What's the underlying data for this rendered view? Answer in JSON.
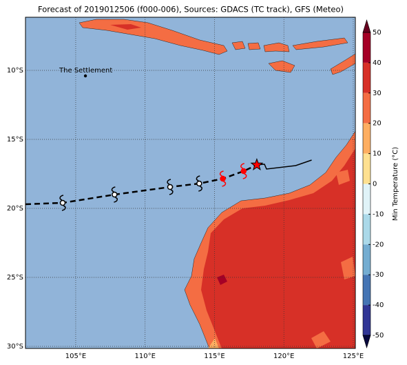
{
  "title": "Forecast of 2019012506 (f000-006), Sources: GDACS (TC track), GFS (Meteo)",
  "map": {
    "lon_range": [
      101.38,
      125.15
    ],
    "lat_range": [
      -6.15,
      -30.15
    ],
    "ocean_color": "#91b4d9",
    "lon_ticks": [
      {
        "value": 105,
        "label": "105°E"
      },
      {
        "value": 110,
        "label": "110°E"
      },
      {
        "value": 115,
        "label": "115°E"
      },
      {
        "value": 120,
        "label": "120°E"
      },
      {
        "value": 125,
        "label": "125°E"
      }
    ],
    "lat_ticks": [
      {
        "value": -10,
        "label": "10°S"
      },
      {
        "value": -15,
        "label": "15°S"
      },
      {
        "value": -20,
        "label": "20°S"
      },
      {
        "value": -25,
        "label": "25°S"
      },
      {
        "value": -30,
        "label": "30°S"
      }
    ],
    "place": {
      "label": "The Settlement",
      "lon": 105.7,
      "lat": -10.4
    }
  },
  "track": {
    "dashed": [
      {
        "lon": 101.38,
        "lat": -19.7
      },
      {
        "lon": 104.06,
        "lat": -19.6
      },
      {
        "lon": 107.8,
        "lat": -19.0
      },
      {
        "lon": 111.8,
        "lat": -18.45
      },
      {
        "lon": 113.9,
        "lat": -18.2
      },
      {
        "lon": 115.6,
        "lat": -17.85
      },
      {
        "lon": 117.1,
        "lat": -17.3
      },
      {
        "lon": 118.05,
        "lat": -16.85
      }
    ],
    "solid": [
      {
        "lon": 118.05,
        "lat": -16.85
      },
      {
        "lon": 118.6,
        "lat": -16.8
      },
      {
        "lon": 118.75,
        "lat": -17.15
      },
      {
        "lon": 120.85,
        "lat": -16.9
      },
      {
        "lon": 122.0,
        "lat": -16.5
      }
    ],
    "markers": [
      {
        "lon": 104.06,
        "lat": -19.6,
        "color": "#000000"
      },
      {
        "lon": 107.8,
        "lat": -19.0,
        "color": "#000000"
      },
      {
        "lon": 111.8,
        "lat": -18.45,
        "color": "#000000"
      },
      {
        "lon": 113.9,
        "lat": -18.2,
        "color": "#000000"
      },
      {
        "lon": 115.6,
        "lat": -17.85,
        "color": "#ff0000"
      },
      {
        "lon": 117.1,
        "lat": -17.3,
        "color": "#ff0000"
      }
    ],
    "current": {
      "lon": 118.05,
      "lat": -16.85,
      "color": "#ff0000"
    }
  },
  "colorbar": {
    "label": "Min Temperature (°C)",
    "ticks": [
      50,
      40,
      30,
      20,
      10,
      0,
      -10,
      -20,
      -30,
      -40,
      -50
    ],
    "colors": [
      "#a50026",
      "#d73027",
      "#f46d43",
      "#fdae61",
      "#fee090",
      "#e0f3f8",
      "#abd9e9",
      "#74add1",
      "#4575b4",
      "#313695"
    ],
    "extend_colors": [
      "#67001f",
      "#08083d"
    ]
  }
}
